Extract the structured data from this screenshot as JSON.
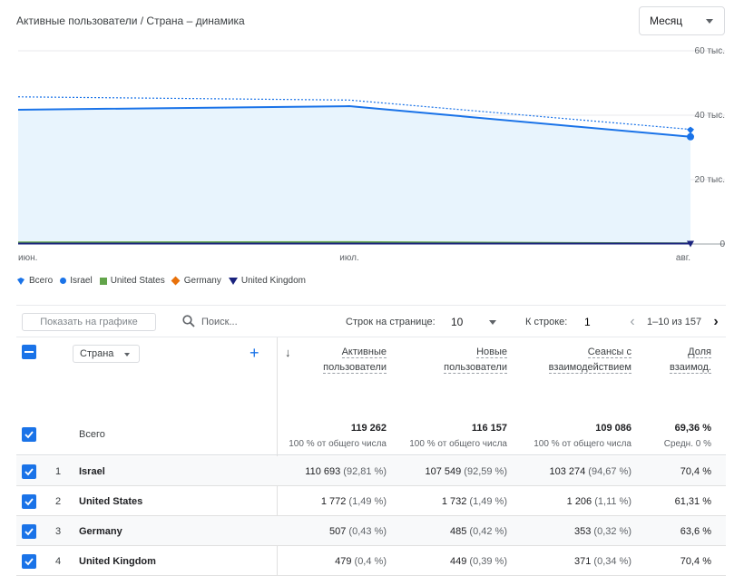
{
  "header": {
    "title": "Активные пользователи / Страна – динамика",
    "period": "Месяц"
  },
  "chart_data": {
    "type": "area",
    "x": [
      "июн.",
      "июл.",
      "авг."
    ],
    "y_ticks": [
      "60 тыс.",
      "40 тыс.",
      "20 тыс.",
      "0"
    ],
    "ylim": [
      0,
      60000
    ],
    "series": [
      {
        "name": "Всего",
        "values": [
          45700,
          44700,
          35600
        ],
        "style": "dotted",
        "color": "#1a73e8"
      },
      {
        "name": "Israel",
        "values": [
          41700,
          42800,
          33300
        ],
        "style": "line-area",
        "color": "#1a73e8"
      },
      {
        "name": "United States",
        "values": [
          500,
          600,
          200
        ],
        "color": "#62a44a"
      },
      {
        "name": "Germany",
        "values": [
          200,
          200,
          150
        ],
        "color": "#e8710a"
      },
      {
        "name": "United Kingdom",
        "values": [
          150,
          150,
          150
        ],
        "color": "#1a237e"
      }
    ]
  },
  "toolbar": {
    "show_on_chart": "Показать на графике",
    "search_placeholder": "Поиск...",
    "rows_label": "Строк на странице:",
    "rows_value": "10",
    "goto_label": "К строке:",
    "goto_value": "1",
    "range": "1–10 из 157"
  },
  "table": {
    "dimension": "Страна",
    "columns": [
      {
        "line1": "Активные",
        "line2": "пользователи"
      },
      {
        "line1": "Новые",
        "line2": "пользователи"
      },
      {
        "line1": "Сеансы с",
        "line2": "взаимодействием"
      },
      {
        "line1": "Доля",
        "line2": "взаимод."
      }
    ],
    "total": {
      "label": "Всего",
      "values": [
        "119 262",
        "116 157",
        "109 086",
        "69,36 %"
      ],
      "subs": [
        "100 % от общего числа",
        "100 % от общего числа",
        "100 % от общего числа",
        "Средн. 0 %"
      ]
    },
    "rows": [
      {
        "idx": "1",
        "country": "Israel",
        "c1": "110 693",
        "p1": "(92,81 %)",
        "c2": "107 549",
        "p2": "(92,59 %)",
        "c3": "103 274",
        "p3": "(94,67 %)",
        "c4": "70,4 %"
      },
      {
        "idx": "2",
        "country": "United States",
        "c1": "1 772",
        "p1": "(1,49 %)",
        "c2": "1 732",
        "p2": "(1,49 %)",
        "c3": "1 206",
        "p3": "(1,11 %)",
        "c4": "61,31 %"
      },
      {
        "idx": "3",
        "country": "Germany",
        "c1": "507",
        "p1": "(0,43 %)",
        "c2": "485",
        "p2": "(0,42 %)",
        "c3": "353",
        "p3": "(0,32 %)",
        "c4": "63,6 %"
      },
      {
        "idx": "4",
        "country": "United Kingdom",
        "c1": "479",
        "p1": "(0,4 %)",
        "c2": "449",
        "p2": "(0,39 %)",
        "c3": "371",
        "p3": "(0,34 %)",
        "c4": "70,4 %"
      }
    ]
  }
}
